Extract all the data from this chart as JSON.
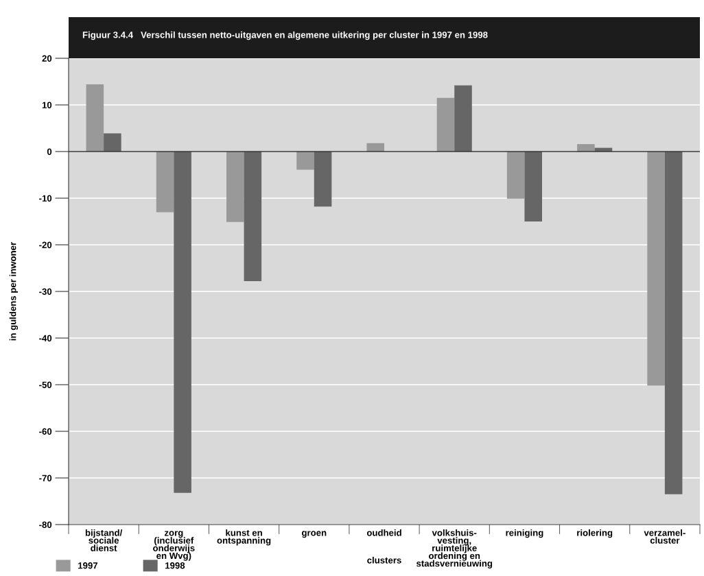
{
  "chart_data": {
    "type": "bar",
    "title": "Figuur 3.4.4   Verschil tussen netto-uitgaven en algemene uitkering per cluster in 1997 en 1998",
    "xlabel": "clusters",
    "ylabel": "in guldens per inwoner",
    "categories": [
      "bijstand/\nsociale\ndienst",
      "zorg\n(inclusief\nonderwijs\nen Wvg)",
      "kunst en\nontspanning",
      "groen",
      "oudheid",
      "volkshuis-\nvesting,\nruimtelijke\nordening en\nstadsvernieuwing",
      "reiniging",
      "riolering",
      "verzamel-\ncluster"
    ],
    "series": [
      {
        "name": "1997",
        "color": "#999999",
        "values": [
          14.4,
          -13.0,
          -15.1,
          -3.9,
          1.8,
          11.5,
          -10.1,
          1.6,
          -50.2
        ]
      },
      {
        "name": "1998",
        "color": "#666666",
        "values": [
          3.9,
          -73.2,
          -27.8,
          -11.8,
          null,
          14.2,
          -15.0,
          0.8,
          -73.5
        ]
      }
    ],
    "ylim": [
      -80,
      20
    ],
    "yticks": [
      -80,
      -70,
      -60,
      -50,
      -40,
      -30,
      -20,
      -10,
      0,
      10,
      20
    ],
    "grid": "y",
    "legend": "bottom left"
  }
}
